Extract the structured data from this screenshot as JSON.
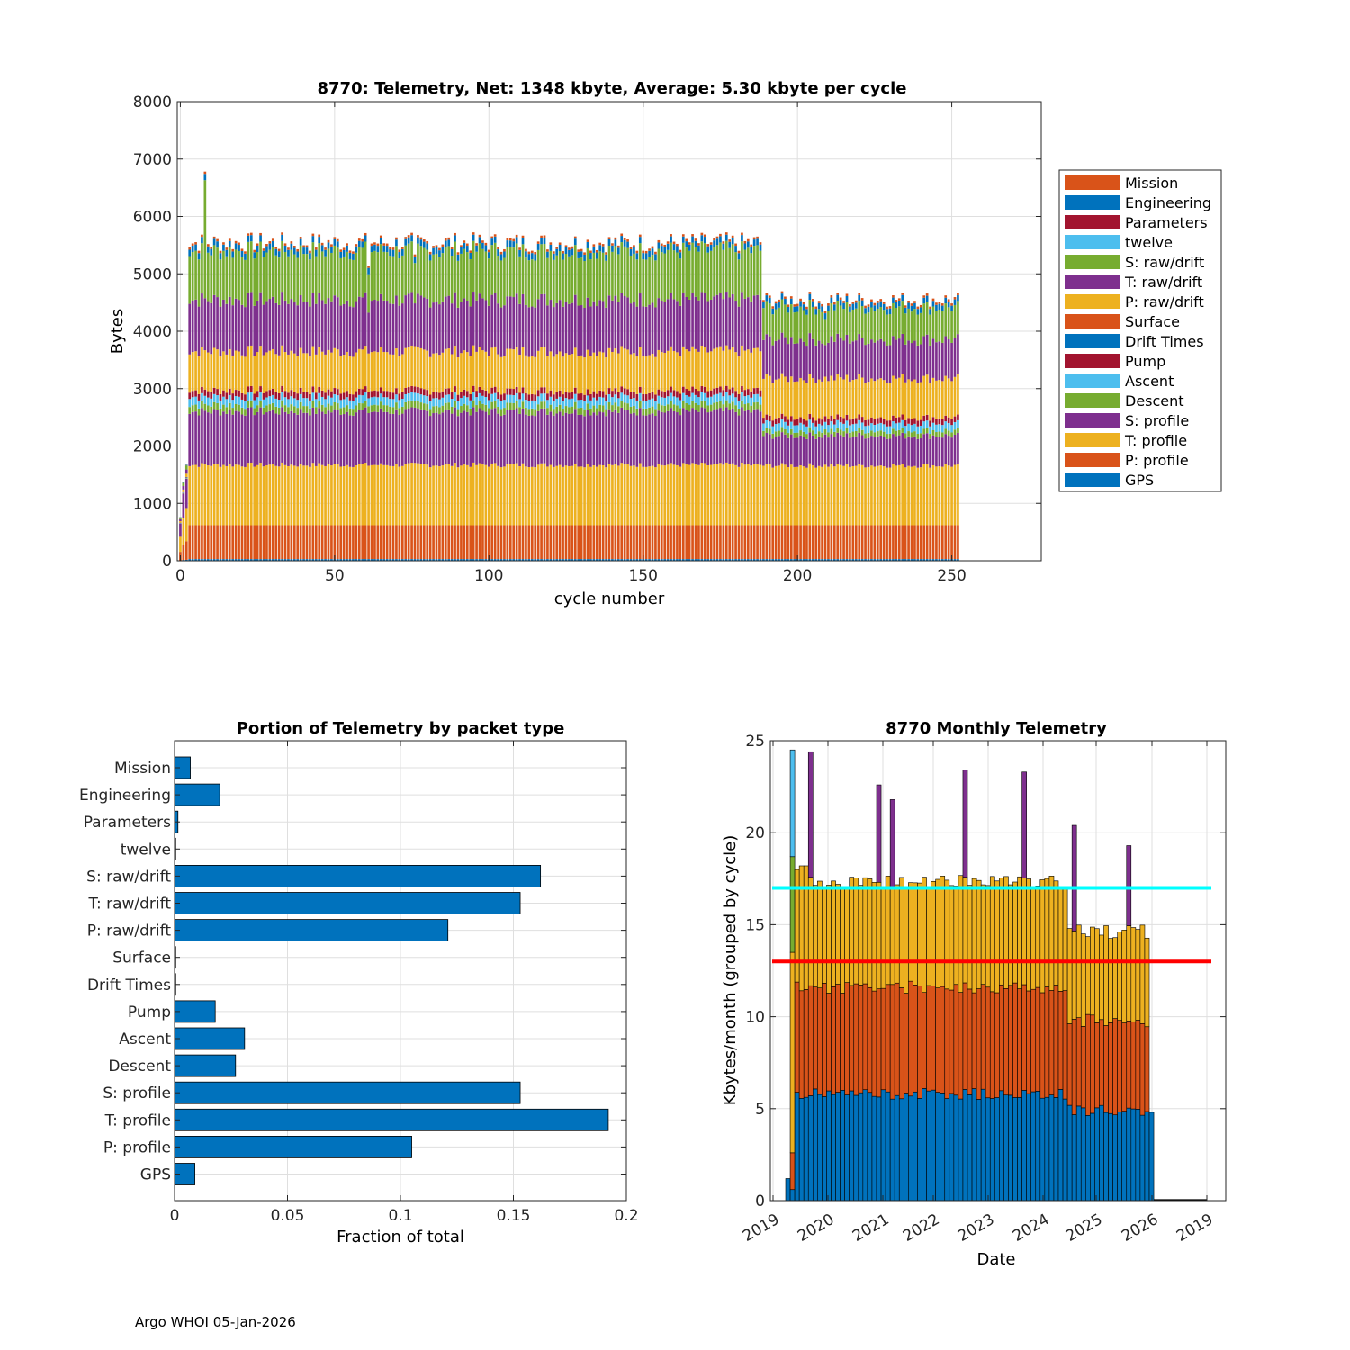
{
  "footer": "Argo WHOI 05-Jan-2026",
  "colors": {
    "mission": "#d95319",
    "engineering": "#0072bd",
    "parameters": "#a2142f",
    "twelve": "#4dbeee",
    "green": "#77ac30",
    "purple": "#7e2f8e",
    "yellow": "#edb120",
    "orange": "#d95319",
    "blue": "#0072bd",
    "pump": "#a2142f",
    "ascent": "#4dbeee",
    "cyan_line": "#00ffff",
    "red_line": "#ff0000",
    "grid": "#dfdfdf"
  },
  "chart_data": [
    {
      "type": "bar",
      "stacked": true,
      "title": "8770: Telemetry, Net:   1348 kbyte,  Average: 5.30 kbyte per cycle",
      "xlabel": "cycle number",
      "ylabel": "Bytes",
      "xlim": [
        -1,
        279
      ],
      "ylim": [
        0,
        8000
      ],
      "xticks": [
        0,
        50,
        100,
        150,
        200,
        250
      ],
      "yticks": [
        0,
        1000,
        2000,
        3000,
        4000,
        5000,
        6000,
        7000,
        8000
      ],
      "n_cycles": 253,
      "legend": [
        "Mission",
        "Engineering",
        "Parameters",
        "twelve",
        "S: raw/drift",
        "T: raw/drift",
        "P: raw/drift",
        "Surface",
        "Drift Times",
        "Pump",
        "Ascent",
        "Descent",
        "S: profile",
        "T: profile",
        "P: profile",
        "GPS"
      ],
      "legend_colors": [
        "#d95319",
        "#0072bd",
        "#a2142f",
        "#4dbeee",
        "#77ac30",
        "#7e2f8e",
        "#edb120",
        "#d95319",
        "#0072bd",
        "#a2142f",
        "#4dbeee",
        "#77ac30",
        "#7e2f8e",
        "#edb120",
        "#d95319",
        "#0072bd"
      ],
      "legend_position": "outside-right",
      "typical_segments_bytes": {
        "cycles_3_to_188": {
          "GPS": 30,
          "P: profile": 590,
          "T: profile": 1050,
          "S: profile": 930,
          "Descent": 120,
          "Ascent": 140,
          "Pump": 110,
          "P: raw/drift": 680,
          "T: raw/drift": 900,
          "S: raw/drift": 850,
          "Engineering": 110,
          "Mission": 40
        },
        "cycles_189_to_252": {
          "GPS": 30,
          "P: profile": 590,
          "T: profile": 1040,
          "S: profile": 520,
          "Descent": 90,
          "Ascent": 130,
          "Pump": 100,
          "P: raw/drift": 680,
          "T: raw/drift": 680,
          "S: raw/drift": 560,
          "Engineering": 100,
          "Mission": 40
        }
      },
      "annotations": "cycle 8 peaks near 7100 bytes; cycles 0-2 are partial (about 1200-2000 bytes)"
    },
    {
      "type": "barh",
      "title": "Portion of Telemetry by packet type",
      "xlabel": "Fraction of total",
      "xlim": [
        0,
        0.2
      ],
      "xticks": [
        0,
        0.05,
        0.1,
        0.15,
        0.2
      ],
      "xtick_labels": [
        "0",
        "0.05",
        "0.1",
        "0.15",
        "0.2"
      ],
      "categories": [
        "Mission",
        "Engineering",
        "Parameters",
        "twelve",
        "S: raw/drift",
        "T: raw/drift",
        "P: raw/drift",
        "Surface",
        "Drift Times",
        "Pump",
        "Ascent",
        "Descent",
        "S: profile",
        "T: profile",
        "P: profile",
        "GPS"
      ],
      "values": [
        0.007,
        0.02,
        0.0015,
        0.0005,
        0.162,
        0.153,
        0.121,
        0.0005,
        0.0005,
        0.018,
        0.031,
        0.027,
        0.153,
        0.192,
        0.105,
        0.009
      ]
    },
    {
      "type": "bar",
      "stacked": true,
      "title": "8770 Monthly Telemetry",
      "xlabel": "Date",
      "ylabel": "Kbytes/month (grouped by cycle)",
      "ylim": [
        0,
        25
      ],
      "yticks": [
        0,
        5,
        10,
        15,
        20,
        25
      ],
      "xtick_labels": [
        "2019",
        "2020",
        "2021",
        "2022",
        "2023",
        "2024",
        "2025",
        "2026",
        "2019"
      ],
      "reference_lines": [
        {
          "y": 17,
          "color": "cyan"
        },
        {
          "y": 13,
          "color": "red"
        }
      ],
      "months": 81,
      "series_description": "per-month stacked kbytes: blue ~5-6, orange to ~11-12, yellow to ~17 (2019-2024) and ~14.5 (2024-2026); purple spikes",
      "spikes": [
        {
          "month_index": 1,
          "top": 24.5,
          "color": "light-blue"
        },
        {
          "month_index": 5,
          "top": 24.4,
          "color": "purple"
        },
        {
          "month_index": 20,
          "top": 22.6,
          "color": "purple"
        },
        {
          "month_index": 23,
          "top": 21.8,
          "color": "purple"
        },
        {
          "month_index": 39,
          "top": 23.4,
          "color": "purple"
        },
        {
          "month_index": 52,
          "top": 23.3,
          "color": "purple"
        },
        {
          "month_index": 63,
          "top": 20.4,
          "color": "purple"
        },
        {
          "month_index": 75,
          "top": 19.3,
          "color": "purple"
        }
      ]
    }
  ]
}
